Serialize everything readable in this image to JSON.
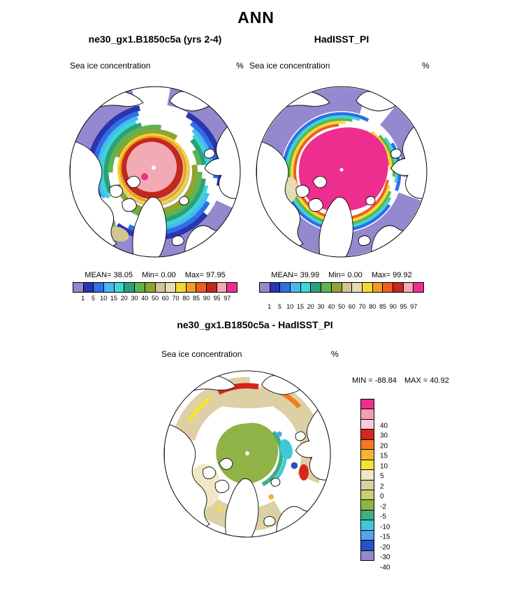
{
  "page": {
    "title": "ANN"
  },
  "panels": {
    "model": {
      "title": "ne30_gx1.B1850c5a (yrs 2-4)",
      "field_label": "Sea ice concentration",
      "units": "%",
      "stats": {
        "mean_label": "MEAN=",
        "mean_value": "38.05",
        "min_label": "Min=",
        "min_value": "0.00",
        "max_label": "Max=",
        "max_value": "97.95"
      }
    },
    "obs": {
      "title": "HadISST_PI",
      "field_label": "Sea ice concentration",
      "units": "%",
      "stats": {
        "mean_label": "MEAN=",
        "mean_value": "39.99",
        "min_label": "Min=",
        "min_value": "0.00",
        "max_label": "Max=",
        "max_value": "99.92"
      }
    },
    "diff": {
      "title": "ne30_gx1.B1850c5a - HadISST_PI",
      "field_label": "Sea ice concentration",
      "units": "%",
      "stats": {
        "min_label": "MIN =",
        "min_value": "-88.84",
        "max_label": "MAX =",
        "max_value": "40.92"
      }
    }
  },
  "colorbar_concentration": {
    "tick_labels": [
      "1",
      "5",
      "10",
      "15",
      "20",
      "30",
      "40",
      "50",
      "60",
      "70",
      "80",
      "85",
      "90",
      "95",
      "97"
    ],
    "colors": [
      "#9488cf",
      "#2a35b0",
      "#2f6fe8",
      "#49b8f0",
      "#3cd6d6",
      "#2ba07a",
      "#5eb44e",
      "#8fa432",
      "#d2c493",
      "#e6dcb4",
      "#f2d935",
      "#f39c1f",
      "#ec5f21",
      "#c3281c",
      "#f2aab4",
      "#ee2e8e"
    ]
  },
  "colorbar_difference": {
    "tick_labels": [
      "40",
      "30",
      "20",
      "15",
      "10",
      "5",
      "2",
      "0",
      "-2",
      "-5",
      "-10",
      "-15",
      "-20",
      "-30",
      "-40"
    ],
    "colors": [
      "#ee2e8e",
      "#f2a0b0",
      "#f8ccd4",
      "#d6251e",
      "#f27a1f",
      "#f5b52c",
      "#f2e337",
      "#f0e8c4",
      "#ddd0a4",
      "#c9d06e",
      "#8fb346",
      "#3fae82",
      "#40c8d8",
      "#55a2ee",
      "#2a50c8",
      "#9488cf"
    ]
  },
  "chart_data": [
    {
      "type": "heatmap",
      "subtype": "north-polar-stereographic-map",
      "title": "ne30_gx1.B1850c5a (yrs 2-4)",
      "season": "ANN",
      "field": "Sea ice concentration",
      "units": "%",
      "stats": {
        "mean": 38.05,
        "min": 0.0,
        "max": 97.95
      },
      "contour_levels": [
        1,
        5,
        10,
        15,
        20,
        30,
        40,
        50,
        60,
        70,
        80,
        85,
        90,
        95,
        97
      ],
      "palette": [
        "#9488cf",
        "#2a35b0",
        "#2f6fe8",
        "#49b8f0",
        "#3cd6d6",
        "#2ba07a",
        "#5eb44e",
        "#8fa432",
        "#d2c493",
        "#e6dcb4",
        "#f2d935",
        "#f39c1f",
        "#ec5f21",
        "#c3281c",
        "#f2aab4",
        "#ee2e8e"
      ],
      "legend_position": "below"
    },
    {
      "type": "heatmap",
      "subtype": "north-polar-stereographic-map",
      "title": "HadISST_PI",
      "season": "ANN",
      "field": "Sea ice concentration",
      "units": "%",
      "stats": {
        "mean": 39.99,
        "min": 0.0,
        "max": 99.92
      },
      "contour_levels": [
        1,
        5,
        10,
        15,
        20,
        30,
        40,
        50,
        60,
        70,
        80,
        85,
        90,
        95,
        97
      ],
      "palette": [
        "#9488cf",
        "#2a35b0",
        "#2f6fe8",
        "#49b8f0",
        "#3cd6d6",
        "#2ba07a",
        "#5eb44e",
        "#8fa432",
        "#d2c493",
        "#e6dcb4",
        "#f2d935",
        "#f39c1f",
        "#ec5f21",
        "#c3281c",
        "#f2aab4",
        "#ee2e8e"
      ],
      "legend_position": "below"
    },
    {
      "type": "heatmap",
      "subtype": "north-polar-stereographic-map",
      "title": "ne30_gx1.B1850c5a - HadISST_PI",
      "season": "ANN",
      "field": "Sea ice concentration (difference)",
      "units": "%",
      "stats": {
        "min": -88.84,
        "max": 40.92
      },
      "contour_levels": [
        40,
        30,
        20,
        15,
        10,
        5,
        2,
        0,
        -2,
        -5,
        -10,
        -15,
        -20,
        -30,
        -40
      ],
      "palette": [
        "#ee2e8e",
        "#f2a0b0",
        "#f8ccd4",
        "#d6251e",
        "#f27a1f",
        "#f5b52c",
        "#f2e337",
        "#f0e8c4",
        "#ddd0a4",
        "#c9d06e",
        "#8fb346",
        "#3fae82",
        "#40c8d8",
        "#55a2ee",
        "#2a50c8",
        "#9488cf"
      ],
      "legend_position": "right"
    }
  ]
}
